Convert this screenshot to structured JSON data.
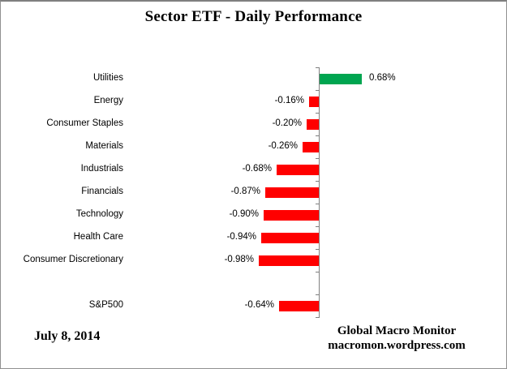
{
  "title": "Sector ETF - Daily Performance",
  "footer": {
    "date": "July 8, 2014",
    "attribution_line1": "Global Macro Monitor",
    "attribution_line2": "macromon.wordpress.com"
  },
  "colors": {
    "positive_bar": "#00A550",
    "negative_bar": "#FF0000",
    "axis": "#808080",
    "text": "#000000"
  },
  "chart_data": {
    "type": "bar",
    "orientation": "horizontal",
    "title": "Sector ETF - Daily Performance",
    "xlabel": "",
    "ylabel": "",
    "grid": false,
    "data_labels": true,
    "xlim": [
      -1.1,
      0.9
    ],
    "categories": [
      "Utilities",
      "Energy",
      "Consumer Staples",
      "Materials",
      "Industrials",
      "Financials",
      "Technology",
      "Health Care",
      "Consumer Discretionary",
      "",
      "S&P500"
    ],
    "values": [
      0.68,
      -0.16,
      -0.2,
      -0.26,
      -0.68,
      -0.87,
      -0.9,
      -0.94,
      -0.98,
      null,
      -0.64
    ],
    "value_labels": [
      "0.68%",
      "-0.16%",
      "-0.20%",
      "-0.26%",
      "-0.68%",
      "-0.87%",
      "-0.90%",
      "-0.94%",
      "-0.98%",
      "",
      "-0.64%"
    ]
  }
}
